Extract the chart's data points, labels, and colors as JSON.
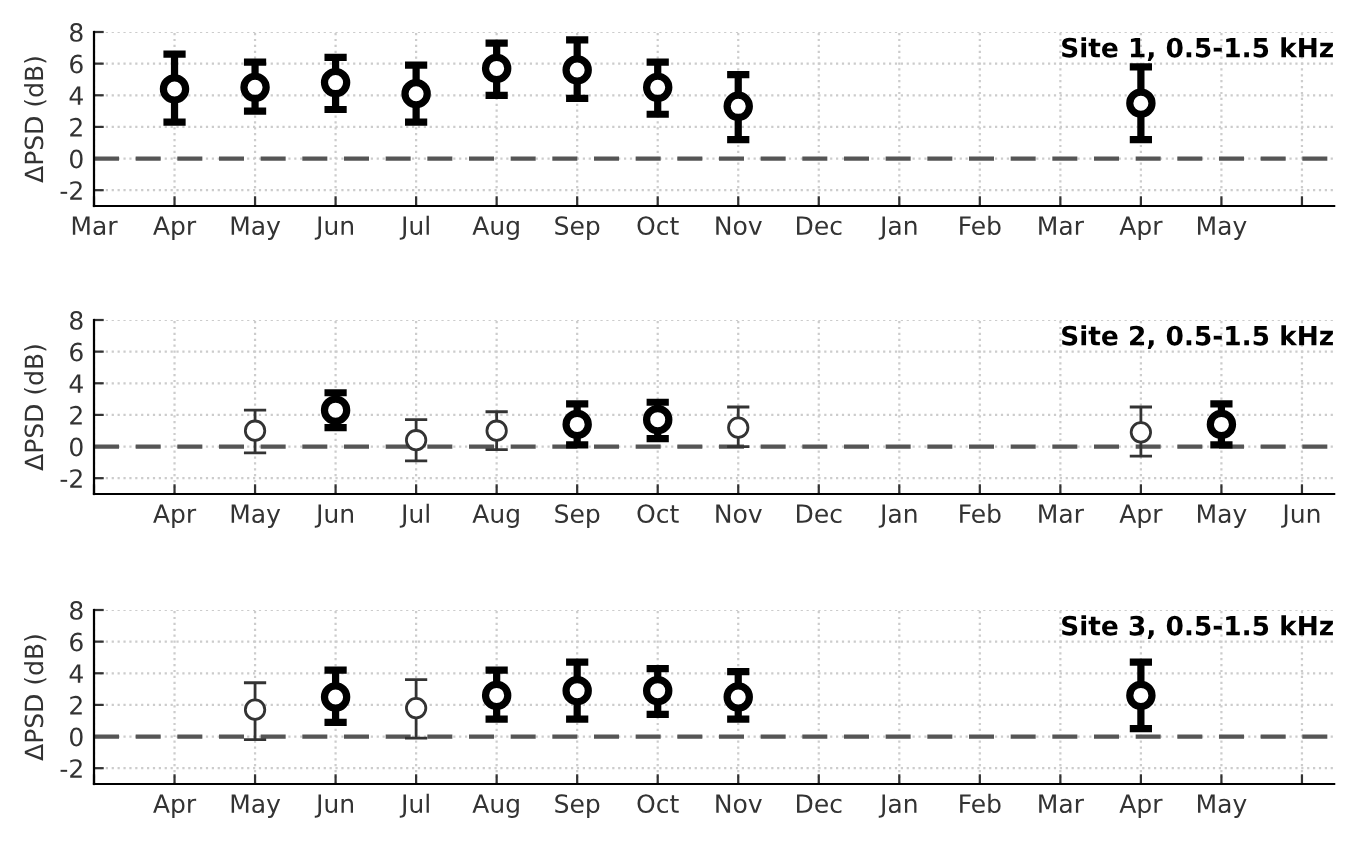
{
  "chart_data": [
    {
      "type": "scatter",
      "title": "Site 1, 0.5-1.5 kHz",
      "ylabel": "ΔPSD (dB)",
      "ylim": [
        -3,
        8
      ],
      "yticks": [
        -2,
        0,
        2,
        4,
        6,
        8
      ],
      "categories": [
        "Mar",
        "Apr",
        "May",
        "Jun",
        "Jul",
        "Aug",
        "Sep",
        "Oct",
        "Nov",
        "Dec",
        "Jan",
        "Feb",
        "Mar",
        "Apr",
        "May",
        null
      ],
      "series": [
        {
          "color": "#000000",
          "values": [
            null,
            4.4,
            4.5,
            4.8,
            4.1,
            5.7,
            5.6,
            4.5,
            3.3,
            null,
            null,
            null,
            null,
            3.5,
            null,
            null
          ],
          "errors": [
            null,
            [
              2.3,
              6.6
            ],
            [
              3.0,
              6.1
            ],
            [
              3.1,
              6.4
            ],
            [
              2.3,
              5.9
            ],
            [
              4.0,
              7.3
            ],
            [
              3.8,
              7.5
            ],
            [
              2.8,
              6.1
            ],
            [
              1.2,
              5.3
            ],
            null,
            null,
            null,
            null,
            [
              1.2,
              5.8
            ],
            null,
            null
          ]
        }
      ],
      "marker": "circle",
      "grid": true,
      "ref_lines": [
        {
          "axis": "y",
          "value": 0,
          "color": "#555555",
          "line_style": "dashed"
        }
      ]
    },
    {
      "type": "scatter",
      "title": "Site 2, 0.5-1.5 kHz",
      "ylabel": "ΔPSD (dB)",
      "ylim": [
        -3,
        8
      ],
      "yticks": [
        -2,
        0,
        2,
        4,
        6,
        8
      ],
      "categories": [
        null,
        "Apr",
        "May",
        "Jun",
        "Jul",
        "Aug",
        "Sep",
        "Oct",
        "Nov",
        "Dec",
        "Jan",
        "Feb",
        "Mar",
        "Apr",
        "May",
        "Jun"
      ],
      "series": [
        {
          "color": "#000000",
          "values": [
            null,
            null,
            null,
            2.3,
            null,
            null,
            1.4,
            1.7,
            null,
            null,
            null,
            null,
            null,
            null,
            1.4,
            null
          ],
          "errors": [
            null,
            null,
            null,
            [
              1.2,
              3.4
            ],
            null,
            null,
            [
              0.1,
              2.7
            ],
            [
              0.5,
              2.8
            ],
            null,
            null,
            null,
            null,
            null,
            null,
            [
              0.1,
              2.7
            ],
            null
          ]
        },
        {
          "color": "#333333",
          "values": [
            null,
            null,
            1.0,
            null,
            0.4,
            1.0,
            null,
            null,
            1.2,
            null,
            null,
            null,
            null,
            0.9,
            null,
            null
          ],
          "errors": [
            null,
            null,
            [
              -0.4,
              2.3
            ],
            null,
            [
              -0.9,
              1.7
            ],
            [
              -0.2,
              2.2
            ],
            null,
            null,
            [
              0.0,
              2.5
            ],
            null,
            null,
            null,
            null,
            [
              -0.6,
              2.5
            ],
            null,
            null
          ]
        }
      ],
      "marker": "circle",
      "grid": true,
      "ref_lines": [
        {
          "axis": "y",
          "value": 0,
          "color": "#555555",
          "line_style": "dashed"
        }
      ]
    },
    {
      "type": "scatter",
      "title": "Site 3, 0.5-1.5 kHz",
      "ylabel": "ΔPSD (dB)",
      "ylim": [
        -3,
        8
      ],
      "yticks": [
        -2,
        0,
        2,
        4,
        6,
        8
      ],
      "categories": [
        null,
        "Apr",
        "May",
        "Jun",
        "Jul",
        "Aug",
        "Sep",
        "Oct",
        "Nov",
        "Dec",
        "Jan",
        "Feb",
        "Mar",
        "Apr",
        "May",
        null
      ],
      "series": [
        {
          "color": "#000000",
          "values": [
            null,
            null,
            null,
            2.5,
            null,
            2.6,
            2.9,
            2.9,
            2.5,
            null,
            null,
            null,
            null,
            2.6,
            null,
            null
          ],
          "errors": [
            null,
            null,
            null,
            [
              0.9,
              4.2
            ],
            null,
            [
              1.1,
              4.2
            ],
            [
              1.1,
              4.7
            ],
            [
              1.4,
              4.3
            ],
            [
              1.1,
              4.1
            ],
            null,
            null,
            null,
            null,
            [
              0.5,
              4.7
            ],
            null,
            null
          ]
        },
        {
          "color": "#333333",
          "values": [
            null,
            null,
            1.7,
            null,
            1.8,
            null,
            null,
            null,
            null,
            null,
            null,
            null,
            null,
            null,
            null,
            null
          ],
          "errors": [
            null,
            null,
            [
              -0.2,
              3.4
            ],
            null,
            [
              -0.1,
              3.6
            ],
            null,
            null,
            null,
            null,
            null,
            null,
            null,
            null,
            null,
            null,
            null
          ]
        }
      ],
      "marker": "circle",
      "grid": true,
      "ref_lines": [
        {
          "axis": "y",
          "value": 0,
          "color": "#555555",
          "line_style": "dashed"
        }
      ]
    }
  ]
}
